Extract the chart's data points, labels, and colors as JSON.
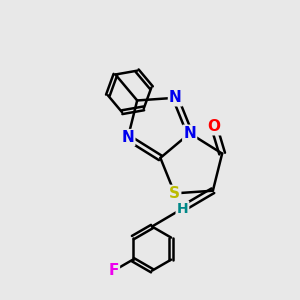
{
  "bg_color": "#e8e8e8",
  "bond_color": "#000000",
  "bond_width": 1.8,
  "atom_colors": {
    "O": "#ff0000",
    "N": "#0000ee",
    "S": "#bbbb00",
    "F": "#ee00ee",
    "H": "#008888",
    "C": "#000000"
  },
  "font_size": 11,
  "fig_width": 3.0,
  "fig_height": 3.0,
  "dpi": 100
}
